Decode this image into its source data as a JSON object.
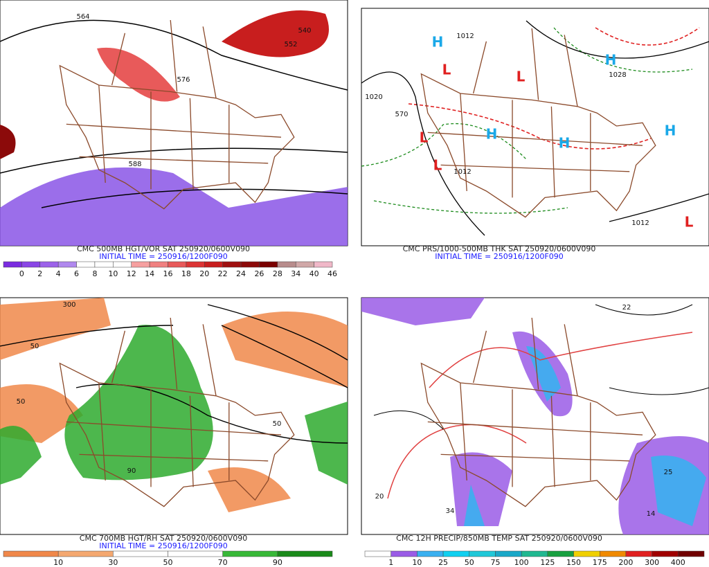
{
  "panels": [
    {
      "title": "CMC 500MB HGT/VOR SAT 250920/0600V090",
      "initial_time": "INITIAL TIME = 250916/1200F090",
      "colorbar": {
        "labels": [
          "0",
          "2",
          "4",
          "6",
          "8",
          "10",
          "12",
          "14",
          "16",
          "18",
          "20",
          "22",
          "24",
          "26",
          "28",
          "34",
          "40",
          "46"
        ],
        "colors": [
          "#7a2be0",
          "#8a46e6",
          "#9c62ea",
          "#b088ee",
          "#ffffff",
          "#ffffff",
          "#ffffff",
          "#f6a0a0",
          "#f08080",
          "#e85a5a",
          "#dc3434",
          "#c81e1e",
          "#a01010",
          "#8c0a0a",
          "#7a0000",
          "#b88c8c",
          "#d0a8a8",
          "#f0b8c8"
        ]
      },
      "contour_labels": [
        "564",
        "552",
        "540",
        "576",
        "588"
      ]
    },
    {
      "title": "CMC PRS/1000-500MB THK SAT 250920/0600V090",
      "initial_time": "INITIAL TIME = 250916/1200F090",
      "contour_labels": [
        "1012",
        "1020",
        "1028",
        "1012",
        "570",
        "1012"
      ],
      "markers": [
        "H",
        "H",
        "H",
        "L",
        "L",
        "L",
        "L",
        "H",
        "H",
        "L"
      ]
    },
    {
      "title": "CMC 700MB HGT/RH SAT 250920/0600V090",
      "initial_time": "INITIAL TIME = 250916/1200F090",
      "colorbar": {
        "labels": [
          "10",
          "30",
          "50",
          "70",
          "90"
        ],
        "colors": [
          "#f0884a",
          "#f4a870",
          "#ffffff",
          "#ffffff",
          "#38b838",
          "#1a8a1a"
        ]
      },
      "contour_labels": [
        "300",
        "50",
        "50",
        "90",
        "50"
      ]
    },
    {
      "title": "CMC 12H PRECIP/850MB TEMP SAT 250920/0600V090",
      "colorbar": {
        "labels": [
          "1",
          "10",
          "25",
          "50",
          "75",
          "100",
          "125",
          "150",
          "175",
          "200",
          "300",
          "400"
        ],
        "colors": [
          "#ffffff",
          "#9a5ce6",
          "#3ab0f0",
          "#10d0f0",
          "#20c8d8",
          "#1aa8c8",
          "#20b890",
          "#18a040",
          "#f0d000",
          "#f08a00",
          "#e02020",
          "#a00000",
          "#700000"
        ]
      },
      "contour_labels": [
        "22",
        "25",
        "34",
        "20",
        "14"
      ]
    }
  ]
}
